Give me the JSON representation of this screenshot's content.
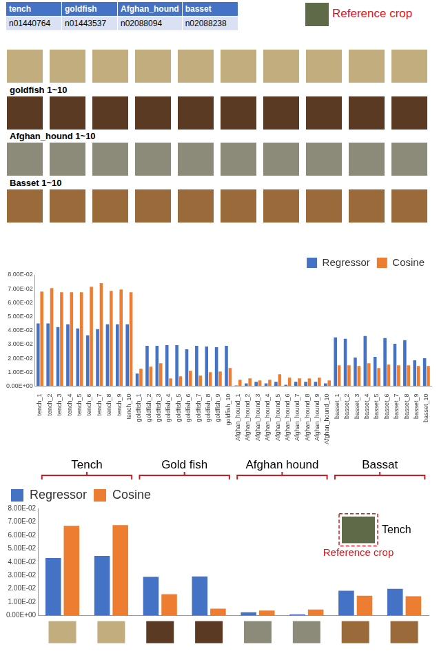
{
  "header_table": {
    "header": [
      "tench",
      "goldfish",
      "Afghan_hound",
      "basset"
    ],
    "rows": [
      [
        "n01440764",
        "n01443537",
        "n02088094",
        "n02088238"
      ]
    ]
  },
  "reference_crop_label": "Reference crop",
  "image_row_labels": [
    "goldfish 1~10",
    "Afghan_hound 1~10",
    "Basset 1~10"
  ],
  "chart_data": [
    {
      "type": "bar",
      "categories": [
        "tench_1",
        "tench_2",
        "tench_3",
        "tench_4",
        "tench_5",
        "tench_6",
        "tench_7",
        "tench_8",
        "tench_9",
        "tench_10",
        "goldfish_1",
        "goldfish_2",
        "goldfish_3",
        "goldfish_4",
        "goldfish_5",
        "goldfish_6",
        "goldfish_7",
        "goldfish_8",
        "goldfish_9",
        "goldfish_10",
        "Afghan_hound_1",
        "Afghan_hound_2",
        "Afghan_hound_3",
        "Afghan_hound_4",
        "Afghan_hound_5",
        "Afghan_hound_6",
        "Afghan_hound_7",
        "Afghan_hound_8",
        "Afghan_hound_9",
        "Afghan_hound_10",
        "basset_1",
        "basset_2",
        "basset_3",
        "basset_4",
        "basset_5",
        "basset_6",
        "basset_7",
        "basset_8",
        "basset_9",
        "basset_10"
      ],
      "series": [
        {
          "name": "Regressor",
          "color": "#4472c4",
          "values": [
            0.045,
            0.045,
            0.0425,
            0.0445,
            0.0415,
            0.0365,
            0.041,
            0.0445,
            0.0445,
            0.0445,
            0.009,
            0.029,
            0.029,
            0.0295,
            0.0295,
            0.0265,
            0.029,
            0.0285,
            0.028,
            0.029,
            0.0005,
            0.002,
            0.003,
            0.002,
            0.003,
            0.001,
            0.003,
            0.003,
            0.003,
            0.002,
            0.035,
            0.034,
            0.0205,
            0.036,
            0.021,
            0.0345,
            0.0305,
            0.033,
            0.0185,
            0.02
          ]
        },
        {
          "name": "Cosine",
          "color": "#ed7d31",
          "values": [
            0.068,
            0.0705,
            0.0675,
            0.0675,
            0.0675,
            0.0715,
            0.074,
            0.0685,
            0.0695,
            0.0675,
            0.0125,
            0.014,
            0.0165,
            0.0055,
            0.007,
            0.011,
            0.0075,
            0.01,
            0.0105,
            0.013,
            0.0045,
            0.0055,
            0.004,
            0.0045,
            0.0085,
            0.006,
            0.0055,
            0.0055,
            0.006,
            0.004,
            0.015,
            0.015,
            0.0145,
            0.0165,
            0.013,
            0.0155,
            0.015,
            0.015,
            0.0145,
            0.0145
          ]
        }
      ],
      "ylim": [
        0,
        0.08
      ],
      "yticks": [
        {
          "value": 0,
          "label": "0.00E+00"
        },
        {
          "value": 0.01,
          "label": "1.00E-02"
        },
        {
          "value": 0.02,
          "label": "2.00E-02"
        },
        {
          "value": 0.03,
          "label": "3.00E-02"
        },
        {
          "value": 0.04,
          "label": "4.00E-02"
        },
        {
          "value": 0.05,
          "label": "5.00E-02"
        },
        {
          "value": 0.06,
          "label": "6.00E-02"
        },
        {
          "value": 0.07,
          "label": "7.00E-02"
        },
        {
          "value": 0.08,
          "label": "8.00E-02"
        }
      ],
      "grid": false,
      "legend": "top-right"
    },
    {
      "type": "bar",
      "categories": [
        null,
        null,
        null,
        null,
        null,
        null,
        null,
        null
      ],
      "groups": [
        "Tench",
        "Gold fish",
        "Afghan hound",
        "Bassat"
      ],
      "series": [
        {
          "name": "Regressor",
          "color": "#4472c4",
          "values": [
            0.043,
            0.0445,
            0.029,
            0.0292,
            0.0025,
            0.001,
            0.0185,
            0.02
          ]
        },
        {
          "name": "Cosine",
          "color": "#ed7d31",
          "values": [
            0.067,
            0.0675,
            0.016,
            0.0052,
            0.0038,
            0.0045,
            0.0148,
            0.0145
          ]
        }
      ],
      "ylim": [
        0,
        0.08
      ],
      "yticks": [
        {
          "value": 0,
          "label": "0.00E+00"
        },
        {
          "value": 0.01,
          "label": "1.00E-02"
        },
        {
          "value": 0.02,
          "label": "2.00E-02"
        },
        {
          "value": 0.03,
          "label": "3.00E-02"
        },
        {
          "value": 0.04,
          "label": "4.00E-02"
        },
        {
          "value": 0.05,
          "label": "5.00E-02"
        },
        {
          "value": 0.06,
          "label": "6.00E-02"
        },
        {
          "value": 0.07,
          "label": "7.00E-02"
        },
        {
          "value": 0.08,
          "label": "8.00E-02"
        }
      ],
      "annotations": {
        "inset_label": "Tench",
        "inset_caption": "Reference crop"
      },
      "grid": false,
      "legend": "top-left"
    }
  ]
}
